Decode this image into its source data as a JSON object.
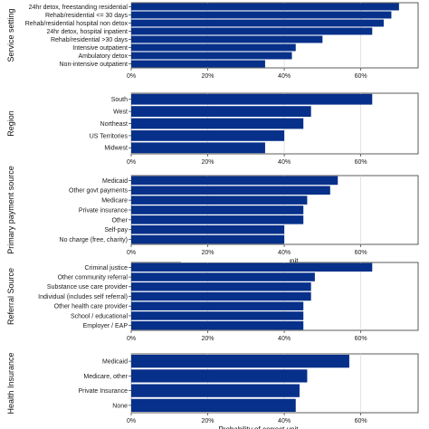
{
  "chart_data": {
    "type": "bar",
    "orientation": "horizontal",
    "xlabel": "Probability of correct unit",
    "xlim": [
      0,
      0.75
    ],
    "xticks": [
      0,
      0.2,
      0.4,
      0.6
    ],
    "xtick_labels": [
      "0%",
      "20%",
      "40%",
      "60%"
    ],
    "bar_color": "#06308a",
    "grid": true,
    "facets": [
      {
        "label": "Service setting",
        "categories": [
          "24hr detox, freestanding residential",
          "Rehab/residential <= 30 days",
          "Rehab/residential hospital non detox",
          "24hr detox, hospital inpatient",
          "Rehab/residential >30 days",
          "Intensive outpatient",
          "Ambulatory detox",
          "Non-intensive outpatient"
        ],
        "values": [
          0.7,
          0.68,
          0.66,
          0.63,
          0.5,
          0.43,
          0.42,
          0.35
        ]
      },
      {
        "label": "Region",
        "categories": [
          "South",
          "West",
          "Northeast",
          "US Territories",
          "Midwest"
        ],
        "values": [
          0.63,
          0.47,
          0.45,
          0.4,
          0.35
        ]
      },
      {
        "label": "Primary payment source",
        "categories": [
          "Medicaid",
          "Other govt payments",
          "Medicare",
          "Private insurance",
          "Other",
          "Self-pay",
          "No charge (free, charity)"
        ],
        "values": [
          0.54,
          0.52,
          0.46,
          0.45,
          0.45,
          0.4,
          0.4
        ]
      },
      {
        "label": "Referral Source",
        "categories": [
          "Criminal justice",
          "Other community referral",
          "Substance use care provider",
          "Individual (includes self referral)",
          "Other health care provider",
          "School / educational",
          "Employer / EAP"
        ],
        "values": [
          0.63,
          0.48,
          0.47,
          0.47,
          0.45,
          0.45,
          0.45
        ]
      },
      {
        "label": "Health Insurance",
        "categories": [
          "Medicaid",
          "Medicare, other",
          "Private Insurance",
          "None"
        ],
        "values": [
          0.57,
          0.46,
          0.44,
          0.43
        ]
      }
    ]
  }
}
